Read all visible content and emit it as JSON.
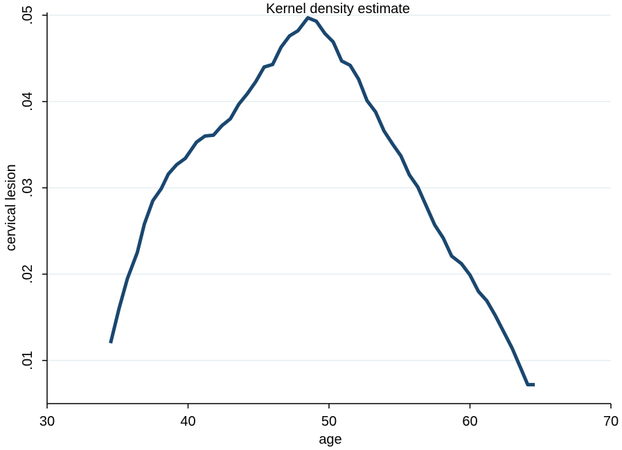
{
  "chart_data": {
    "type": "line",
    "title": "Kernel density estimate",
    "xlabel": "age",
    "ylabel": "cervical lesion",
    "xlim": [
      30,
      70
    ],
    "ylim": [
      0.005,
      0.05
    ],
    "x_ticks": [
      30,
      40,
      50,
      60,
      70
    ],
    "x_tick_labels": [
      "30",
      "40",
      "50",
      "60",
      "70"
    ],
    "y_ticks": [
      0.01,
      0.02,
      0.03,
      0.04,
      0.05
    ],
    "y_tick_labels": [
      ".01",
      ".02",
      ".03",
      ".04",
      ".05"
    ],
    "grid": true,
    "legend": "none",
    "colors": {
      "line": "#1a476f",
      "grid": "#e4eef0",
      "axis": "#000000",
      "background": "#ffffff"
    },
    "series": [
      {
        "x": [
          34.5,
          35.1,
          35.7,
          36.4,
          36.9,
          37.5,
          38.1,
          38.6,
          39.2,
          39.8,
          40.6,
          41.2,
          41.8,
          42.4,
          43.0,
          43.6,
          44.2,
          44.8,
          45.4,
          46.0,
          46.6,
          47.2,
          47.8,
          48.5,
          49.1,
          49.7,
          50.3,
          50.9,
          51.5,
          52.1,
          52.7,
          53.3,
          53.9,
          54.5,
          55.1,
          55.7,
          56.3,
          56.9,
          57.5,
          58.1,
          58.7,
          59.4,
          60.0,
          60.6,
          61.2,
          61.8,
          62.4,
          63.0,
          63.6,
          64.1,
          64.6
        ],
        "y": [
          0.012,
          0.016,
          0.0195,
          0.0225,
          0.0258,
          0.0285,
          0.0299,
          0.0316,
          0.0327,
          0.0334,
          0.0353,
          0.036,
          0.0361,
          0.0372,
          0.038,
          0.0397,
          0.0409,
          0.0423,
          0.044,
          0.0443,
          0.0463,
          0.0476,
          0.0482,
          0.0497,
          0.0493,
          0.0479,
          0.0469,
          0.0447,
          0.0442,
          0.0426,
          0.0401,
          0.0388,
          0.0366,
          0.0351,
          0.0337,
          0.0315,
          0.0301,
          0.0279,
          0.0257,
          0.0242,
          0.0221,
          0.0212,
          0.0199,
          0.018,
          0.0169,
          0.0152,
          0.0133,
          0.0114,
          0.0091,
          0.0072,
          0.0072
        ]
      }
    ]
  }
}
